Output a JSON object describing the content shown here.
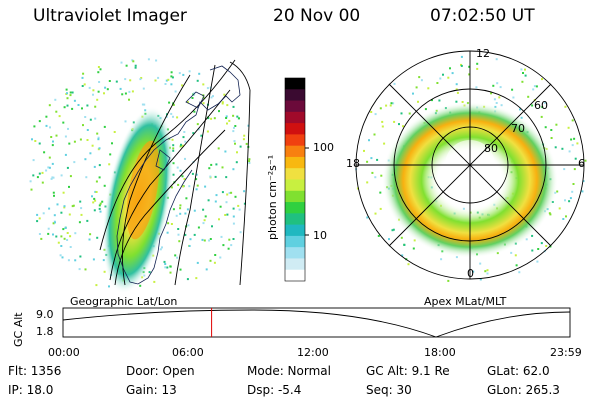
{
  "header": {
    "instrument": "Ultraviolet Imager",
    "date": "20 Nov 00",
    "time": "07:02:50 UT"
  },
  "colorbar": {
    "label": "photon cm⁻²s⁻¹",
    "ticks": [
      "100",
      "10"
    ],
    "colors": [
      "#000000",
      "#3a0a30",
      "#6b0a3a",
      "#a00a2a",
      "#d01010",
      "#f04010",
      "#f88010",
      "#f8b810",
      "#f0e040",
      "#c8f040",
      "#80e030",
      "#30d040",
      "#20c080",
      "#20b8c0",
      "#60d0e0",
      "#a0e0f0",
      "#d0ecf4",
      "#ffffff"
    ]
  },
  "left_panel": {
    "label": "Geographic Lat/Lon"
  },
  "right_panel": {
    "label": "Apex MLat/MLT",
    "mlt_labels": [
      "12",
      "18",
      "6",
      "0"
    ],
    "mlat_labels": [
      "60",
      "70",
      "80"
    ]
  },
  "altitude_plot": {
    "ylabel": "GC Alt",
    "y_ticks": [
      "9.0",
      "1.8"
    ],
    "x_ticks": [
      "00:00",
      "06:00",
      "12:00",
      "18:00",
      "23:59"
    ],
    "current_time_fraction": 0.293
  },
  "info": {
    "flt": "Flt:  1356",
    "ip": "IP:  18.0",
    "door": "Door:  Open",
    "gain": "Gain:  13",
    "mode": "Mode:  Normal",
    "dsp": "Dsp:     -5.4",
    "gc_alt": "GC Alt:  9.1 Re",
    "seq": "Seq:  30",
    "glat": "GLat:   62.0",
    "glon": "GLon:  265.3"
  }
}
